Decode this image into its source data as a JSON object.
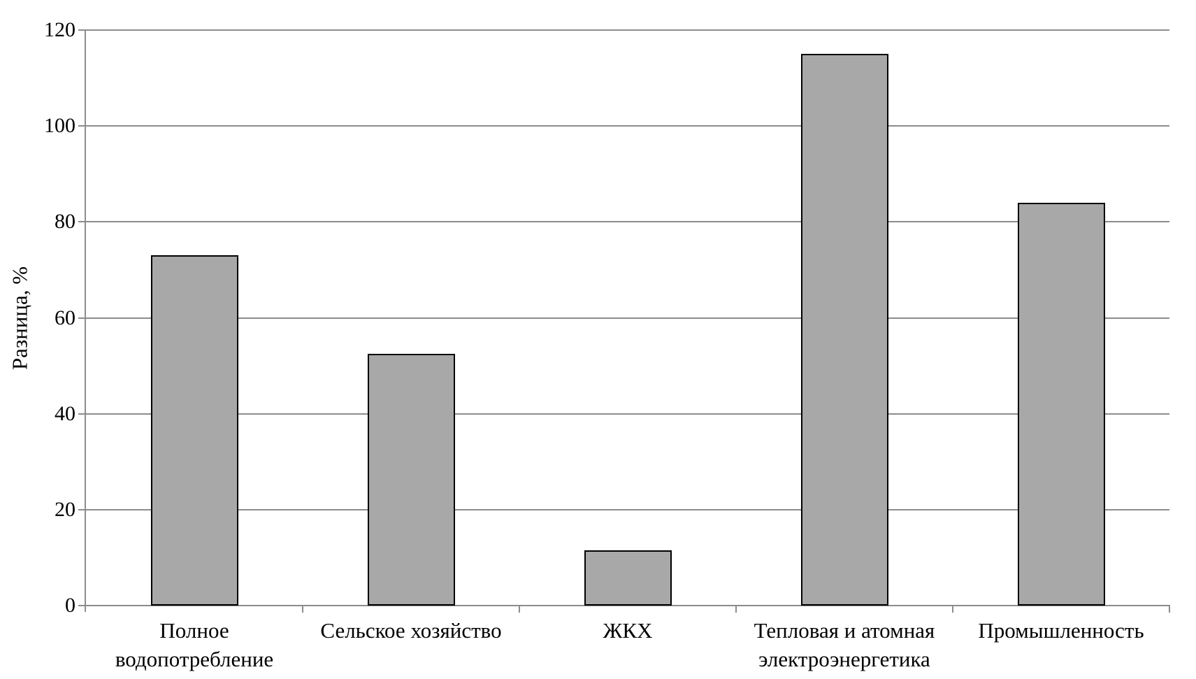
{
  "chart_data": {
    "type": "bar",
    "title": "",
    "ylabel": "Разница, %",
    "xlabel": "",
    "categories": [
      "Полное\nводопотребление",
      "Сельское хозяйство",
      "ЖКХ",
      "Тепловая и атомная\nэлектроэнергетика",
      "Промышленность"
    ],
    "values": [
      73,
      52.5,
      11.5,
      115,
      84
    ],
    "yticks": [
      0,
      20,
      40,
      60,
      80,
      100,
      120
    ],
    "ylim": [
      0,
      120
    ],
    "grid": true,
    "legend": "none",
    "colors": {
      "bar_fill": "#a8a8a8",
      "bar_border": "#000000",
      "grid_line": "#8c8c8c",
      "axis_line": "#8c8c8c",
      "text": "#000000",
      "background": "#ffffff"
    }
  }
}
